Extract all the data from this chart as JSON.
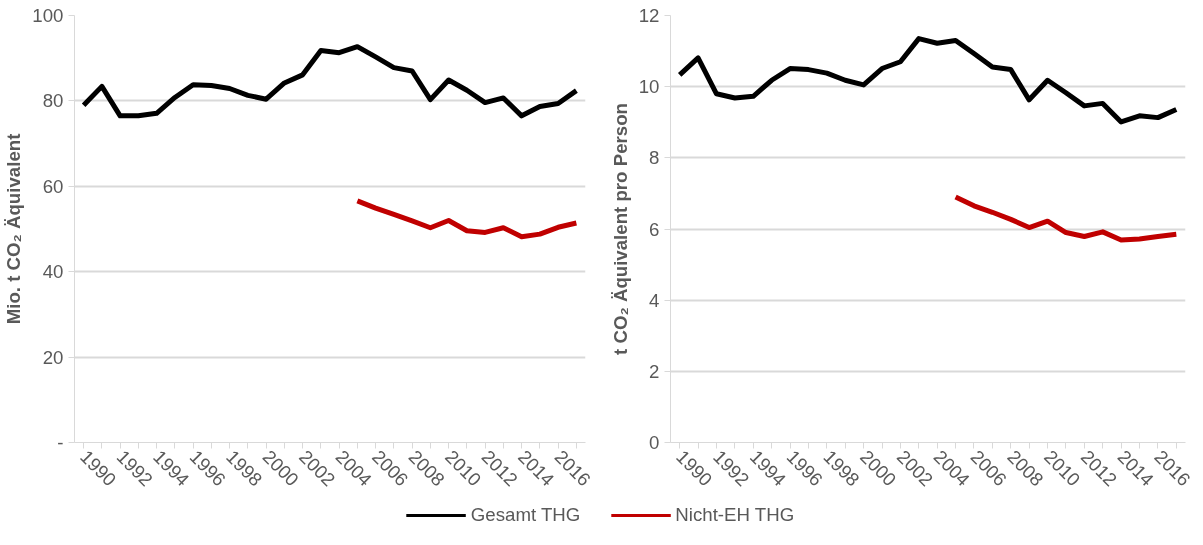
{
  "chart_data": [
    {
      "type": "line",
      "ylabel": "Mio. t CO₂ Äquivalent",
      "categories": [
        "1990",
        null,
        "1992",
        null,
        "1994",
        null,
        "1996",
        null,
        "1998",
        null,
        "2000",
        null,
        "2002",
        null,
        "2004",
        null,
        "2006",
        null,
        "2008",
        null,
        "2010",
        null,
        "2012",
        null,
        "2014",
        null,
        "2016",
        null
      ],
      "ylim": [
        0,
        100
      ],
      "yticks": [
        {
          "value": 0,
          "label": "-"
        },
        20,
        40,
        60,
        80,
        100
      ],
      "grid": "y",
      "legend": "bottom",
      "series": [
        {
          "name": "Gesamt THG",
          "color": "#000000",
          "values": [
            79.0,
            83.4,
            76.5,
            76.5,
            77.1,
            80.8,
            83.8,
            83.6,
            82.9,
            81.3,
            80.4,
            84.2,
            86.1,
            91.8,
            91.3,
            92.7,
            90.3,
            87.8,
            87.0,
            80.3,
            84.9,
            82.5,
            79.6,
            80.7,
            76.5,
            78.7,
            79.4,
            82.4
          ]
        },
        {
          "name": "Nicht-EH THG",
          "color": "#c00000",
          "values": [
            null,
            null,
            null,
            null,
            null,
            null,
            null,
            null,
            null,
            null,
            null,
            null,
            null,
            null,
            null,
            56.6,
            54.9,
            53.4,
            51.9,
            50.3,
            52.0,
            49.6,
            49.2,
            50.3,
            48.2,
            48.8,
            50.4,
            51.4
          ]
        }
      ]
    },
    {
      "type": "line",
      "ylabel": "t CO₂ Äquivalent pro Person",
      "categories": [
        "1990",
        null,
        "1992",
        null,
        "1994",
        null,
        "1996",
        null,
        "1998",
        null,
        "2000",
        null,
        "2002",
        null,
        "2004",
        null,
        "2006",
        null,
        "2008",
        null,
        "2010",
        null,
        "2012",
        null,
        "2014",
        null,
        "2016",
        null
      ],
      "ylim": [
        0,
        12
      ],
      "yticks": [
        0,
        2,
        4,
        6,
        8,
        10,
        12
      ],
      "grid": "y",
      "series": [
        {
          "color": "#000000",
          "values": [
            10.33,
            10.81,
            9.8,
            9.68,
            9.73,
            10.18,
            10.51,
            10.48,
            10.38,
            10.18,
            10.05,
            10.51,
            10.7,
            11.35,
            11.22,
            11.3,
            10.93,
            10.55,
            10.48,
            9.63,
            10.18,
            9.83,
            9.46,
            9.53,
            9.01,
            9.18,
            9.13,
            9.36
          ]
        },
        {
          "color": "#c00000",
          "values": [
            null,
            null,
            null,
            null,
            null,
            null,
            null,
            null,
            null,
            null,
            null,
            null,
            null,
            null,
            null,
            6.9,
            6.65,
            6.47,
            6.27,
            6.04,
            6.22,
            5.9,
            5.79,
            5.92,
            5.69,
            5.72,
            5.79,
            5.85
          ]
        }
      ]
    }
  ]
}
